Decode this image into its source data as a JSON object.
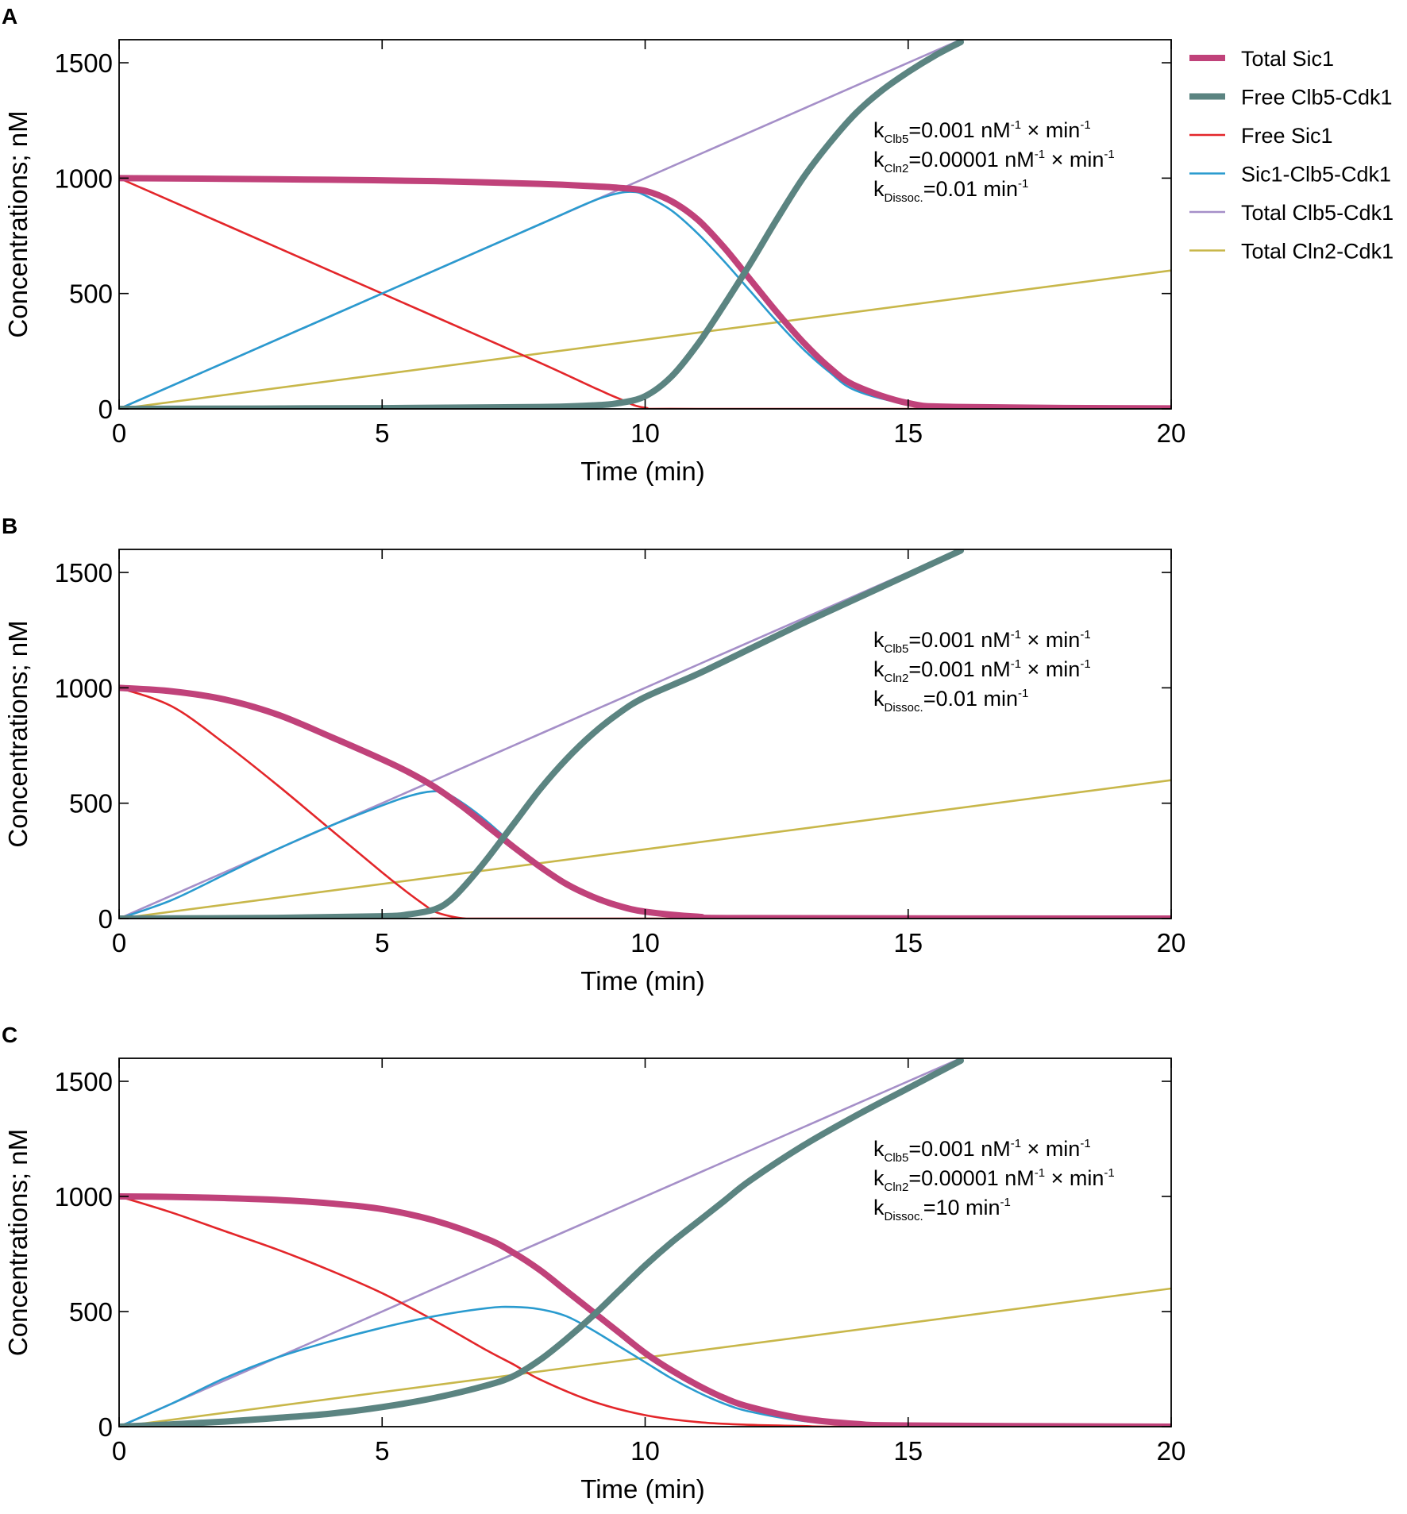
{
  "figure": {
    "legend": [
      {
        "name": "Total Sic1",
        "color": "#c0427a",
        "width": "thick"
      },
      {
        "name": "Free Clb5-Cdk1",
        "color": "#5b8481",
        "width": "thick"
      },
      {
        "name": "Free Sic1",
        "color": "#e3262a",
        "width": "thin"
      },
      {
        "name": "Sic1-Clb5-Cdk1",
        "color": "#2a9bcf",
        "width": "thin"
      },
      {
        "name": "Total Clb5-Cdk1",
        "color": "#a58fc8",
        "width": "thin"
      },
      {
        "name": "Total Cln2-Cdk1",
        "color": "#c8b74a",
        "width": "thin"
      }
    ]
  },
  "chart_data": [
    {
      "panel": "A",
      "type": "line",
      "xlabel": "Time (min)",
      "ylabel": "Concentrations; nM",
      "xlim": [
        0,
        20
      ],
      "ylim": [
        0,
        1600
      ],
      "xticks": [
        "0",
        "5",
        "10",
        "15",
        "20"
      ],
      "yticks": [
        "0",
        "500",
        "1000",
        "1500"
      ],
      "annotations": [
        {
          "k": "k",
          "sub": "Clb5",
          "rest": "=0.001 nM",
          "sup": "-1",
          "tail": " × min",
          "sup2": "-1"
        },
        {
          "k": "k",
          "sub": "Cln2",
          "rest": "=0.00001 nM",
          "sup": "-1",
          "tail": " × min",
          "sup2": "-1"
        },
        {
          "k": "k",
          "sub": "Dissoc.",
          "rest": "=0.01 min",
          "sup": "-1",
          "tail": "",
          "sup2": ""
        }
      ],
      "series": [
        {
          "name": "Total Clb5-Cdk1",
          "x": [
            0,
            16
          ],
          "y": [
            0,
            1600
          ]
        },
        {
          "name": "Total Cln2-Cdk1",
          "x": [
            0,
            20
          ],
          "y": [
            0,
            600
          ]
        },
        {
          "name": "Free Sic1",
          "x": [
            0,
            2,
            4,
            6,
            8,
            9,
            9.5,
            10,
            11,
            20
          ],
          "y": [
            1000,
            800,
            600,
            400,
            200,
            95,
            45,
            5,
            0,
            0
          ]
        },
        {
          "name": "Sic1-Clb5-Cdk1",
          "x": [
            0,
            2,
            4,
            6,
            8,
            9,
            9.5,
            9.8,
            10,
            10.5,
            11,
            11.5,
            12,
            12.5,
            13,
            13.5,
            14,
            15,
            16,
            20
          ],
          "y": [
            0,
            200,
            400,
            600,
            800,
            900,
            935,
            940,
            925,
            860,
            760,
            640,
            510,
            380,
            260,
            160,
            80,
            20,
            5,
            0
          ]
        },
        {
          "name": "Total Sic1",
          "x": [
            0,
            2,
            4,
            6,
            8,
            9,
            9.5,
            10,
            10.5,
            11,
            11.5,
            12,
            12.5,
            13,
            13.5,
            14,
            15,
            16,
            20
          ],
          "y": [
            1000,
            997,
            993,
            987,
            975,
            965,
            958,
            945,
            900,
            820,
            700,
            560,
            420,
            290,
            180,
            100,
            25,
            8,
            2
          ]
        },
        {
          "name": "Free Clb5-Cdk1",
          "x": [
            0,
            5,
            8,
            9,
            9.5,
            10,
            10.5,
            11,
            11.5,
            12,
            12.5,
            13,
            13.5,
            14,
            14.5,
            15,
            15.5,
            16
          ],
          "y": [
            0,
            3,
            8,
            15,
            25,
            55,
            140,
            280,
            450,
            630,
            820,
            1000,
            1150,
            1280,
            1380,
            1460,
            1530,
            1590
          ]
        }
      ]
    },
    {
      "panel": "B",
      "type": "line",
      "xlabel": "Time (min)",
      "ylabel": "Concentrations; nM",
      "xlim": [
        0,
        20
      ],
      "ylim": [
        0,
        1600
      ],
      "xticks": [
        "0",
        "5",
        "10",
        "15",
        "20"
      ],
      "yticks": [
        "0",
        "500",
        "1000",
        "1500"
      ],
      "annotations": [
        {
          "k": "k",
          "sub": "Clb5",
          "rest": "=0.001 nM",
          "sup": "-1",
          "tail": " × min",
          "sup2": "-1"
        },
        {
          "k": "k",
          "sub": "Cln2",
          "rest": "=0.001 nM",
          "sup": "-1",
          "tail": " × min",
          "sup2": "-1"
        },
        {
          "k": "k",
          "sub": "Dissoc.",
          "rest": "=0.01 min",
          "sup": "-1",
          "tail": "",
          "sup2": ""
        }
      ],
      "series": [
        {
          "name": "Total Clb5-Cdk1",
          "x": [
            0,
            16
          ],
          "y": [
            0,
            1600
          ]
        },
        {
          "name": "Total Cln2-Cdk1",
          "x": [
            0,
            20
          ],
          "y": [
            0,
            600
          ]
        },
        {
          "name": "Free Sic1",
          "x": [
            0,
            1,
            2,
            3,
            4,
            5,
            5.5,
            5.8,
            6,
            6.3,
            6.6,
            7,
            20
          ],
          "y": [
            1000,
            920,
            760,
            580,
            390,
            200,
            110,
            60,
            30,
            10,
            0,
            0,
            0
          ]
        },
        {
          "name": "Sic1-Clb5-Cdk1",
          "x": [
            0,
            1,
            2,
            3,
            4,
            5,
            5.5,
            5.9,
            6.2,
            6.6,
            7,
            7.5,
            8,
            8.5,
            9,
            9.5,
            10,
            11,
            12,
            20
          ],
          "y": [
            0,
            80,
            190,
            300,
            400,
            490,
            530,
            550,
            545,
            490,
            420,
            320,
            230,
            150,
            90,
            50,
            25,
            5,
            0,
            0
          ]
        },
        {
          "name": "Total Sic1",
          "x": [
            0,
            1,
            2,
            3,
            4,
            5,
            5.5,
            6,
            6.5,
            7,
            7.5,
            8,
            8.5,
            9,
            9.5,
            10,
            11,
            12,
            20
          ],
          "y": [
            1000,
            985,
            950,
            885,
            790,
            690,
            635,
            570,
            490,
            400,
            310,
            225,
            150,
            95,
            55,
            30,
            8,
            2,
            0
          ]
        },
        {
          "name": "Free Clb5-Cdk1",
          "x": [
            0,
            3,
            5,
            5.5,
            6,
            6.3,
            6.6,
            7,
            7.5,
            8,
            8.5,
            9,
            9.5,
            10,
            11,
            12,
            13,
            14,
            15,
            16
          ],
          "y": [
            0,
            3,
            10,
            18,
            40,
            80,
            150,
            260,
            410,
            560,
            690,
            800,
            890,
            960,
            1060,
            1170,
            1280,
            1385,
            1490,
            1595
          ]
        }
      ]
    },
    {
      "panel": "C",
      "type": "line",
      "xlabel": "Time (min)",
      "ylabel": "Concentrations; nM",
      "xlim": [
        0,
        20
      ],
      "ylim": [
        0,
        1600
      ],
      "xticks": [
        "0",
        "5",
        "10",
        "15",
        "20"
      ],
      "yticks": [
        "0",
        "500",
        "1000",
        "1500"
      ],
      "annotations": [
        {
          "k": "k",
          "sub": "Clb5",
          "rest": "=0.001 nM",
          "sup": "-1",
          "tail": " × min",
          "sup2": "-1"
        },
        {
          "k": "k",
          "sub": "Cln2",
          "rest": "=0.00001 nM",
          "sup": "-1",
          "tail": " × min",
          "sup2": "-1"
        },
        {
          "k": "k",
          "sub": "Dissoc.",
          "rest": "=10 min",
          "sup": "-1",
          "tail": "",
          "sup2": ""
        }
      ],
      "series": [
        {
          "name": "Total Clb5-Cdk1",
          "x": [
            0,
            16
          ],
          "y": [
            0,
            1600
          ]
        },
        {
          "name": "Total Cln2-Cdk1",
          "x": [
            0,
            20
          ],
          "y": [
            0,
            600
          ]
        },
        {
          "name": "Free Sic1",
          "x": [
            0,
            1,
            2,
            3,
            4,
            5,
            6,
            7,
            7.5,
            8,
            9,
            10,
            11,
            12,
            13,
            14,
            20
          ],
          "y": [
            1000,
            930,
            850,
            770,
            680,
            580,
            460,
            330,
            270,
            205,
            110,
            50,
            20,
            8,
            3,
            0,
            0
          ]
        },
        {
          "name": "Sic1-Clb5-Cdk1",
          "x": [
            0,
            1,
            2,
            3,
            4,
            5,
            6,
            7,
            7.5,
            8,
            8.5,
            9,
            9.5,
            10,
            10.5,
            11,
            11.5,
            12,
            13,
            14,
            15,
            20
          ],
          "y": [
            0,
            100,
            210,
            300,
            370,
            430,
            480,
            515,
            520,
            510,
            480,
            420,
            350,
            280,
            210,
            150,
            100,
            65,
            25,
            10,
            3,
            0
          ]
        },
        {
          "name": "Total Sic1",
          "x": [
            0,
            1,
            2,
            3,
            4,
            5,
            6,
            7,
            7.5,
            8,
            8.5,
            9,
            9.5,
            10,
            10.5,
            11,
            11.5,
            12,
            13,
            14,
            15,
            20
          ],
          "y": [
            1000,
            998,
            993,
            985,
            970,
            945,
            895,
            815,
            755,
            680,
            590,
            500,
            410,
            320,
            245,
            180,
            125,
            85,
            35,
            12,
            5,
            0
          ]
        },
        {
          "name": "Free Clb5-Cdk1",
          "x": [
            0,
            1,
            2,
            3,
            4,
            5,
            6,
            7,
            7.5,
            8,
            8.5,
            9,
            9.5,
            10,
            10.5,
            11,
            11.5,
            12,
            13,
            14,
            15,
            16
          ],
          "y": [
            0,
            10,
            22,
            38,
            56,
            85,
            125,
            180,
            220,
            290,
            380,
            480,
            590,
            700,
            800,
            890,
            980,
            1070,
            1220,
            1350,
            1470,
            1590
          ]
        }
      ]
    }
  ]
}
